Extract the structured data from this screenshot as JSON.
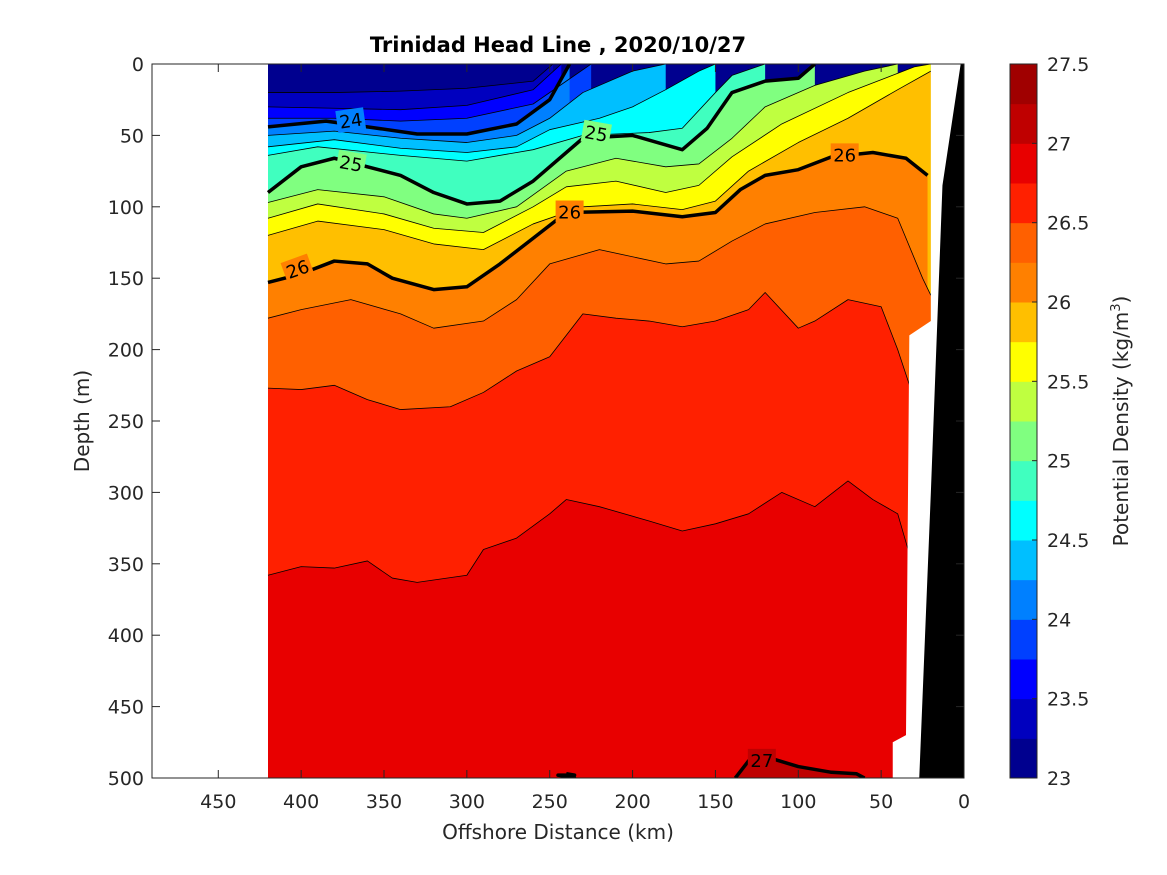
{
  "chart_data": {
    "type": "contour",
    "title": "Trinidad Head Line , 2020/10/27",
    "xlabel": "Offshore Distance (km)",
    "ylabel": "Depth (m)",
    "colorbar_label": "Potential Density (kg/m",
    "colorbar_label_sup": "3",
    "colorbar_label_close": ")",
    "x_reversed": true,
    "y_reversed": true,
    "xlim": [
      0,
      490
    ],
    "ylim": [
      0,
      500
    ],
    "x_ticks": [
      450,
      400,
      350,
      300,
      250,
      200,
      150,
      100,
      50,
      0
    ],
    "y_ticks": [
      0,
      50,
      100,
      150,
      200,
      250,
      300,
      350,
      400,
      450,
      500
    ],
    "colorbar": {
      "range": [
        23,
        27.5
      ],
      "step": 0.25,
      "tick_values": [
        23,
        23.5,
        24,
        24.5,
        25,
        25.5,
        26,
        26.5,
        27,
        27.5
      ],
      "tick_labels": [
        "23",
        "23.5",
        "24",
        "24.5",
        "25",
        "25.5",
        "26",
        "26.5",
        "27",
        "27.5"
      ],
      "colors": [
        "#00008F",
        "#0000BF",
        "#0000FF",
        "#0040FF",
        "#0080FF",
        "#00BFFF",
        "#00FFFF",
        "#40FFBF",
        "#80FF80",
        "#BFFF40",
        "#FFFF00",
        "#FFBF00",
        "#FF8000",
        "#FF6000",
        "#FF2000",
        "#E80000",
        "#BF0000",
        "#A00000"
      ]
    },
    "data_extent_x": [
      20,
      420
    ],
    "coast": {
      "color": "#000000"
    },
    "contour_isolines": [
      {
        "level": 23.25,
        "points": [
          [
            420,
            20
          ],
          [
            380,
            20
          ],
          [
            340,
            19
          ],
          [
            300,
            17
          ],
          [
            260,
            12
          ],
          [
            248,
            0
          ]
        ]
      },
      {
        "level": 23.5,
        "points": [
          [
            420,
            30
          ],
          [
            380,
            31
          ],
          [
            340,
            32
          ],
          [
            300,
            29
          ],
          [
            260,
            18
          ],
          [
            243,
            0
          ]
        ]
      },
      {
        "level": 23.75,
        "points": [
          [
            420,
            38
          ],
          [
            380,
            38
          ],
          [
            340,
            40
          ],
          [
            300,
            38
          ],
          [
            260,
            28
          ],
          [
            240,
            12
          ],
          [
            225,
            0
          ]
        ]
      },
      {
        "level": 24,
        "points": [
          [
            420,
            44
          ],
          [
            385,
            40
          ],
          [
            360,
            44
          ],
          [
            330,
            49
          ],
          [
            300,
            49
          ],
          [
            270,
            42
          ],
          [
            250,
            25
          ],
          [
            238,
            0
          ]
        ]
      },
      {
        "level": 24.25,
        "points": [
          [
            420,
            50
          ],
          [
            380,
            47
          ],
          [
            340,
            52
          ],
          [
            300,
            55
          ],
          [
            270,
            50
          ],
          [
            250,
            38
          ],
          [
            230,
            20
          ],
          [
            200,
            5
          ],
          [
            180,
            0
          ]
        ]
      },
      {
        "level": 24.5,
        "points": [
          [
            420,
            58
          ],
          [
            380,
            53
          ],
          [
            340,
            59
          ],
          [
            300,
            62
          ],
          [
            270,
            58
          ],
          [
            250,
            46
          ],
          [
            220,
            38
          ],
          [
            200,
            30
          ],
          [
            180,
            18
          ],
          [
            160,
            5
          ],
          [
            150,
            0
          ]
        ]
      },
      {
        "level": 24.75,
        "points": [
          [
            420,
            64
          ],
          [
            390,
            58
          ],
          [
            340,
            64
          ],
          [
            300,
            68
          ],
          [
            260,
            60
          ],
          [
            230,
            50
          ],
          [
            190,
            48
          ],
          [
            170,
            45
          ],
          [
            150,
            20
          ],
          [
            140,
            8
          ],
          [
            120,
            0
          ]
        ]
      },
      {
        "level": 25,
        "points": [
          [
            420,
            90
          ],
          [
            400,
            72
          ],
          [
            380,
            66
          ],
          [
            340,
            78
          ],
          [
            320,
            90
          ],
          [
            300,
            98
          ],
          [
            280,
            96
          ],
          [
            260,
            82
          ],
          [
            230,
            52
          ],
          [
            200,
            50
          ],
          [
            170,
            60
          ],
          [
            155,
            45
          ],
          [
            140,
            20
          ],
          [
            120,
            12
          ],
          [
            100,
            10
          ],
          [
            90,
            0
          ]
        ]
      },
      {
        "level": 25.25,
        "points": [
          [
            420,
            97
          ],
          [
            390,
            88
          ],
          [
            350,
            93
          ],
          [
            320,
            105
          ],
          [
            300,
            108
          ],
          [
            270,
            100
          ],
          [
            240,
            75
          ],
          [
            210,
            66
          ],
          [
            180,
            72
          ],
          [
            160,
            70
          ],
          [
            140,
            52
          ],
          [
            120,
            30
          ],
          [
            90,
            15
          ],
          [
            60,
            5
          ],
          [
            40,
            0
          ]
        ]
      },
      {
        "level": 25.5,
        "points": [
          [
            420,
            108
          ],
          [
            390,
            98
          ],
          [
            350,
            105
          ],
          [
            320,
            115
          ],
          [
            290,
            118
          ],
          [
            260,
            100
          ],
          [
            240,
            86
          ],
          [
            210,
            82
          ],
          [
            180,
            90
          ],
          [
            160,
            85
          ],
          [
            140,
            65
          ],
          [
            110,
            42
          ],
          [
            70,
            20
          ],
          [
            30,
            2
          ],
          [
            20,
            0
          ]
        ]
      },
      {
        "level": 25.75,
        "points": [
          [
            420,
            120
          ],
          [
            390,
            110
          ],
          [
            350,
            116
          ],
          [
            320,
            126
          ],
          [
            290,
            130
          ],
          [
            260,
            112
          ],
          [
            230,
            100
          ],
          [
            200,
            98
          ],
          [
            170,
            102
          ],
          [
            150,
            96
          ],
          [
            130,
            75
          ],
          [
            100,
            55
          ],
          [
            70,
            38
          ],
          [
            40,
            18
          ],
          [
            20,
            5
          ]
        ]
      },
      {
        "level": 26,
        "points": [
          [
            420,
            153
          ],
          [
            400,
            147
          ],
          [
            380,
            138
          ],
          [
            360,
            140
          ],
          [
            345,
            150
          ],
          [
            320,
            158
          ],
          [
            300,
            156
          ],
          [
            280,
            140
          ],
          [
            260,
            122
          ],
          [
            240,
            104
          ],
          [
            200,
            103
          ],
          [
            170,
            107
          ],
          [
            150,
            104
          ],
          [
            135,
            88
          ],
          [
            120,
            78
          ],
          [
            100,
            74
          ],
          [
            80,
            65
          ],
          [
            55,
            62
          ],
          [
            35,
            66
          ],
          [
            22,
            78
          ]
        ]
      },
      {
        "level": 26.25,
        "points": [
          [
            420,
            178
          ],
          [
            400,
            172
          ],
          [
            370,
            165
          ],
          [
            340,
            175
          ],
          [
            320,
            185
          ],
          [
            290,
            180
          ],
          [
            270,
            165
          ],
          [
            250,
            140
          ],
          [
            220,
            130
          ],
          [
            180,
            140
          ],
          [
            160,
            138
          ],
          [
            140,
            124
          ],
          [
            120,
            112
          ],
          [
            90,
            104
          ],
          [
            60,
            100
          ],
          [
            40,
            108
          ],
          [
            25,
            150
          ],
          [
            20,
            162
          ]
        ]
      },
      {
        "level": 26.5,
        "points": [
          [
            420,
            227
          ],
          [
            400,
            228
          ],
          [
            380,
            225
          ],
          [
            360,
            235
          ],
          [
            340,
            242
          ],
          [
            310,
            240
          ],
          [
            290,
            230
          ],
          [
            270,
            215
          ],
          [
            250,
            205
          ],
          [
            230,
            175
          ],
          [
            210,
            178
          ],
          [
            190,
            180
          ],
          [
            170,
            184
          ],
          [
            150,
            180
          ],
          [
            130,
            172
          ],
          [
            120,
            160
          ],
          [
            100,
            185
          ],
          [
            90,
            180
          ],
          [
            70,
            165
          ],
          [
            50,
            170
          ],
          [
            40,
            200
          ],
          [
            30,
            235
          ]
        ]
      },
      {
        "level": 26.75,
        "points": [
          [
            420,
            358
          ],
          [
            400,
            352
          ],
          [
            380,
            353
          ],
          [
            360,
            348
          ],
          [
            345,
            360
          ],
          [
            330,
            363
          ],
          [
            300,
            358
          ],
          [
            290,
            340
          ],
          [
            270,
            332
          ],
          [
            250,
            315
          ],
          [
            240,
            305
          ],
          [
            220,
            310
          ],
          [
            190,
            320
          ],
          [
            170,
            327
          ],
          [
            150,
            322
          ],
          [
            130,
            315
          ],
          [
            110,
            300
          ],
          [
            90,
            310
          ],
          [
            70,
            292
          ],
          [
            55,
            305
          ],
          [
            40,
            315
          ],
          [
            30,
            355
          ]
        ]
      },
      {
        "level": 27,
        "points": [
          [
            240,
            500
          ],
          [
            235,
            500
          ],
          [
            245,
            498
          ],
          [
            235,
            498
          ],
          [
            240,
            497
          ]
        ]
      },
      {
        "level": 27,
        "points": [
          [
            138,
            500
          ],
          [
            130,
            488
          ],
          [
            120,
            485
          ],
          [
            100,
            492
          ],
          [
            80,
            496
          ],
          [
            65,
            497
          ],
          [
            60,
            500
          ]
        ]
      }
    ],
    "contour_labels": [
      {
        "level": 24,
        "text": "24",
        "x": 370,
        "y": 40,
        "angle": -8
      },
      {
        "level": 25,
        "text": "25",
        "x": 370,
        "y": 70,
        "angle": 10
      },
      {
        "level": 25,
        "text": "25",
        "x": 222,
        "y": 49,
        "angle": 10
      },
      {
        "level": 26,
        "text": "26",
        "x": 402,
        "y": 144,
        "angle": -20
      },
      {
        "level": 26,
        "text": "26",
        "x": 238,
        "y": 104,
        "angle": 0
      },
      {
        "level": 26,
        "text": "26",
        "x": 72,
        "y": 64,
        "angle": 0
      },
      {
        "level": 27,
        "text": "27",
        "x": 122,
        "y": 488,
        "angle": 0
      }
    ]
  }
}
